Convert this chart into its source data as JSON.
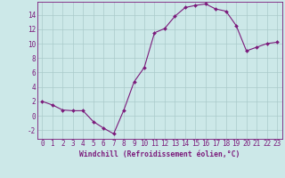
{
  "x": [
    0,
    1,
    2,
    3,
    4,
    5,
    6,
    7,
    8,
    9,
    10,
    11,
    12,
    13,
    14,
    15,
    16,
    17,
    18,
    19,
    20,
    21,
    22,
    23
  ],
  "y": [
    2,
    1.5,
    0.8,
    0.7,
    0.7,
    -0.8,
    -1.7,
    -2.5,
    0.8,
    4.7,
    6.7,
    11.5,
    12.1,
    13.8,
    15.0,
    15.3,
    15.5,
    14.8,
    14.5,
    12.5,
    9.0,
    9.5,
    10.0,
    10.2
  ],
  "line_color": "#7b1a7b",
  "marker": "D",
  "marker_size": 2.0,
  "bg_color": "#cce8e8",
  "grid_color": "#aacaca",
  "xlabel": "Windchill (Refroidissement éolien,°C)",
  "xlim": [
    -0.5,
    23.5
  ],
  "ylim": [
    -3.2,
    15.8
  ],
  "xtick_labels": [
    "0",
    "1",
    "2",
    "3",
    "4",
    "5",
    "6",
    "7",
    "8",
    "9",
    "10",
    "11",
    "12",
    "13",
    "14",
    "15",
    "16",
    "17",
    "18",
    "19",
    "20",
    "21",
    "22",
    "23"
  ],
  "ytick_values": [
    -2,
    0,
    2,
    4,
    6,
    8,
    10,
    12,
    14
  ],
  "axis_color": "#7b1a7b",
  "tick_color": "#7b1a7b",
  "label_color": "#7b1a7b",
  "tick_fontsize": 5.5,
  "xlabel_fontsize": 5.8,
  "linewidth": 0.8
}
